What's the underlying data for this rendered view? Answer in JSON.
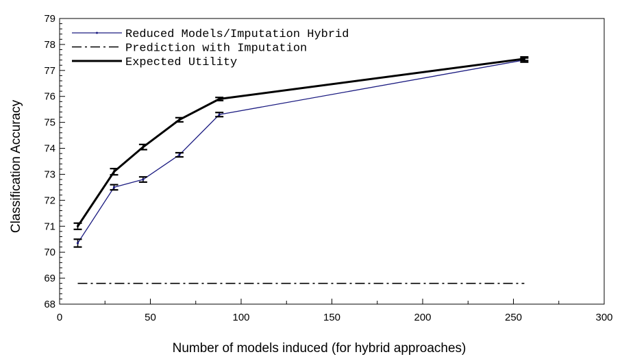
{
  "chart_data": {
    "type": "line",
    "xlabel": "Number of models induced (for hybrid approaches)",
    "ylabel": "Classification Accuracy",
    "xlim": [
      0,
      300
    ],
    "ylim": [
      68,
      79
    ],
    "xticks": [
      0,
      50,
      100,
      150,
      200,
      250,
      300
    ],
    "yticks": [
      68,
      69,
      70,
      71,
      72,
      73,
      74,
      75,
      76,
      77,
      78,
      79
    ],
    "grid": false,
    "legend_position": "top-left",
    "series": [
      {
        "name": "Reduced Models/Imputation Hybrid",
        "color": "#1a1a80",
        "style": "thin-solid",
        "x": [
          10,
          30,
          46,
          66,
          88,
          256
        ],
        "y": [
          70.35,
          72.5,
          72.8,
          73.75,
          75.3,
          77.4
        ],
        "err": [
          0.15,
          0.1,
          0.1,
          0.08,
          0.08,
          0.08
        ]
      },
      {
        "name": "Prediction with Imputation",
        "color": "#000000",
        "style": "dash-dot",
        "x": [
          10,
          256
        ],
        "y": [
          68.8,
          68.8
        ]
      },
      {
        "name": "Expected Utility",
        "color": "#000000",
        "style": "thick-solid",
        "x": [
          10,
          30,
          46,
          66,
          88,
          256
        ],
        "y": [
          71.0,
          73.1,
          74.05,
          75.1,
          75.9,
          77.45
        ],
        "err": [
          0.12,
          0.12,
          0.1,
          0.08,
          0.06,
          0.07
        ]
      }
    ]
  }
}
